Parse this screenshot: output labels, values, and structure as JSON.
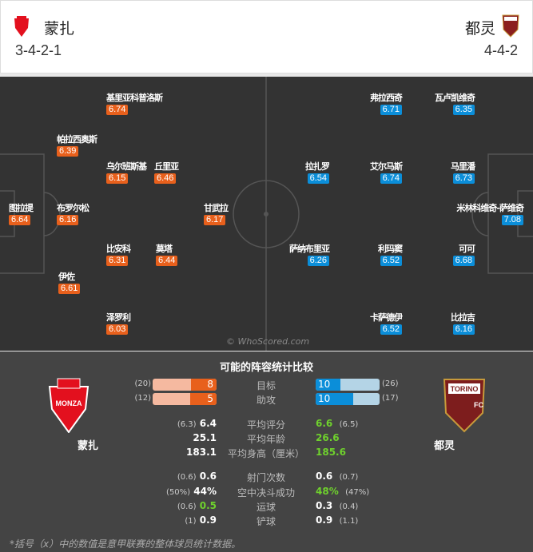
{
  "home": {
    "name": "蒙扎",
    "formation": "3-4-2-1",
    "color": "#e8601c",
    "logo_text": "AC MONZA"
  },
  "away": {
    "name": "都灵",
    "formation": "4-4-2",
    "color": "#0b8ed9",
    "logo_text": "TORINO FC 1906"
  },
  "home_players": [
    {
      "name": "基里亚科普洛斯",
      "rating": "6.74"
    },
    {
      "name": "帕拉西奥斯",
      "rating": "6.39"
    },
    {
      "name": "乌尔班斯基",
      "rating": "6.15"
    },
    {
      "name": "丘里亚",
      "rating": "6.46"
    },
    {
      "name": "图拉提",
      "rating": "6.64"
    },
    {
      "name": "布罗尔松",
      "rating": "6.16"
    },
    {
      "name": "甘武拉",
      "rating": "6.17"
    },
    {
      "name": "比安科",
      "rating": "6.31"
    },
    {
      "name": "莫塔",
      "rating": "6.44"
    },
    {
      "name": "伊佐",
      "rating": "6.61"
    },
    {
      "name": "泽罗利",
      "rating": "6.03"
    }
  ],
  "away_players": [
    {
      "name": "弗拉西奇",
      "rating": "6.71"
    },
    {
      "name": "瓦卢凯维奇",
      "rating": "6.35"
    },
    {
      "name": "拉扎罗",
      "rating": "6.54"
    },
    {
      "name": "艾尔马斯",
      "rating": "6.74"
    },
    {
      "name": "马里潘",
      "rating": "6.73"
    },
    {
      "name": "米林科维奇-萨维奇",
      "rating": "7.08"
    },
    {
      "name": "萨纳布里亚",
      "rating": "6.26"
    },
    {
      "name": "利玛窦",
      "rating": "6.52"
    },
    {
      "name": "可可",
      "rating": "6.68"
    },
    {
      "name": "卡萨德伊",
      "rating": "6.52"
    },
    {
      "name": "比拉吉",
      "rating": "6.16"
    }
  ],
  "watermark": "© WhoScored.com",
  "comparison": {
    "title": "可能的阵容统计比较",
    "bars": [
      {
        "label": "目标",
        "home": 8,
        "home_total": 20,
        "home_total_text": "(20)",
        "away": 10,
        "away_total": 26,
        "away_total_text": "(26)",
        "home_val": "8",
        "away_val": "10"
      },
      {
        "label": "助攻",
        "home": 5,
        "home_total": 12,
        "home_total_text": "(12)",
        "away": 10,
        "away_total": 17,
        "away_total_text": "(17)",
        "home_val": "5",
        "away_val": "10"
      }
    ],
    "rows": [
      {
        "label": "平均评分",
        "home_league": "(6.3)",
        "home": "6.4",
        "away": "6.6",
        "away_league": "(6.5)",
        "better": "away"
      },
      {
        "label": "平均年龄",
        "home_league": "",
        "home": "25.1",
        "away": "26.6",
        "away_league": "",
        "better": "away"
      },
      {
        "label": "平均身高（厘米）",
        "home_league": "",
        "home": "183.1",
        "away": "185.6",
        "away_league": "",
        "better": "away"
      },
      {
        "label": "射门次数",
        "home_league": "(0.6)",
        "home": "0.6",
        "away": "0.6",
        "away_league": "(0.7)",
        "better": ""
      },
      {
        "label": "空中决斗成功",
        "home_league": "(50%)",
        "home": "44%",
        "away": "48%",
        "away_league": "(47%)",
        "better": "away"
      },
      {
        "label": "运球",
        "home_league": "(0.6)",
        "home": "0.5",
        "away": "0.3",
        "away_league": "(0.4)",
        "better": "home"
      },
      {
        "label": "铲球",
        "home_league": "(1)",
        "home": "0.9",
        "away": "0.9",
        "away_league": "(1.1)",
        "better": ""
      }
    ],
    "footnote": "*括号（x）中的数值是意甲联赛的整体球员统计数据。"
  }
}
